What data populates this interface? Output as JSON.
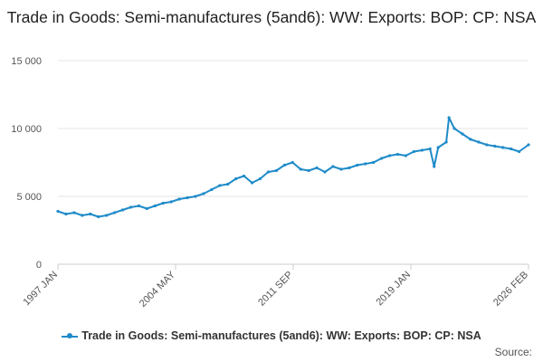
{
  "chart_data": {
    "type": "line",
    "title": "Trade in Goods: Semi-manufactures (5and6): WW: Exports: BOP: CP: NSA",
    "xlabel": "",
    "ylabel": "",
    "ylim": [
      0,
      15000
    ],
    "y_ticks": [
      "15 000",
      "10 000",
      "5 000",
      "0"
    ],
    "y_tick_values": [
      15000,
      10000,
      5000,
      0
    ],
    "x_tick_labels": [
      "1997 JAN",
      "2004 MAY",
      "2011 SEP",
      "2019 JAN",
      "2026 FEB"
    ],
    "x_range": [
      "1997-01",
      "2026-02"
    ],
    "grid": true,
    "legend_position": "bottom",
    "color": "#1f8bc9",
    "series": [
      {
        "name": "Trade in Goods: Semi-manufactures (5and6): WW: Exports: BOP: CP: NSA",
        "x": [
          "1997-01",
          "1997-07",
          "1998-01",
          "1998-07",
          "1999-01",
          "1999-07",
          "2000-01",
          "2000-07",
          "2001-01",
          "2001-07",
          "2002-01",
          "2002-07",
          "2003-01",
          "2003-07",
          "2004-01",
          "2004-07",
          "2005-01",
          "2005-07",
          "2006-01",
          "2006-07",
          "2007-01",
          "2007-07",
          "2008-01",
          "2008-07",
          "2009-01",
          "2009-07",
          "2010-01",
          "2010-07",
          "2011-01",
          "2011-07",
          "2012-01",
          "2012-07",
          "2013-01",
          "2013-07",
          "2014-01",
          "2014-07",
          "2015-01",
          "2015-07",
          "2016-01",
          "2016-07",
          "2017-01",
          "2017-07",
          "2018-01",
          "2018-07",
          "2019-01",
          "2019-07",
          "2020-01",
          "2020-04",
          "2020-07",
          "2021-01",
          "2021-03",
          "2021-07",
          "2022-01",
          "2022-07",
          "2023-01",
          "2023-07",
          "2024-01",
          "2024-07",
          "2025-01",
          "2025-07",
          "2026-02"
        ],
        "values": [
          3900,
          3700,
          3800,
          3600,
          3700,
          3500,
          3600,
          3800,
          4000,
          4200,
          4300,
          4100,
          4300,
          4500,
          4600,
          4800,
          4900,
          5000,
          5200,
          5500,
          5800,
          5900,
          6300,
          6500,
          6000,
          6300,
          6800,
          6900,
          7300,
          7500,
          7000,
          6900,
          7100,
          6800,
          7200,
          7000,
          7100,
          7300,
          7400,
          7500,
          7800,
          8000,
          8100,
          8000,
          8300,
          8400,
          8500,
          7200,
          8600,
          9000,
          10800,
          10000,
          9600,
          9200,
          9000,
          8800,
          8700,
          8600,
          8500,
          8300,
          8800
        ]
      }
    ]
  },
  "source_label": "Source:"
}
